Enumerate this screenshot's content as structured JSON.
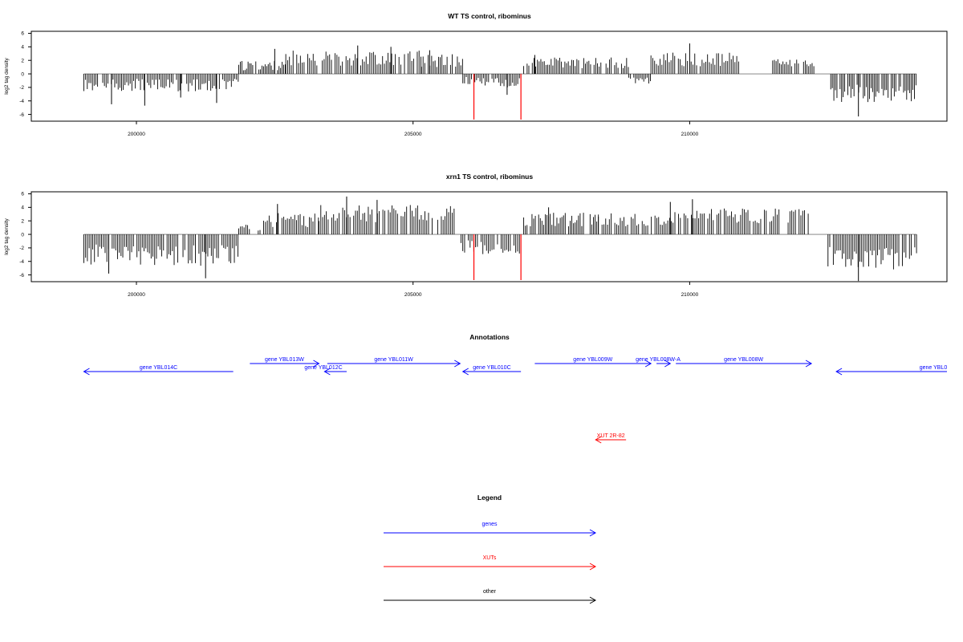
{
  "colors": {
    "gene": "#0000ff",
    "xut": "#ff0000",
    "other": "#000000",
    "bar": "#000000",
    "highlight": "#ff0000"
  },
  "chart_data": [
    {
      "type": "bar",
      "title": "WT TS control, ribominus",
      "ylabel": "log2 tag density",
      "xlim": [
        198100,
        214650
      ],
      "ylim": [
        -7,
        6.3
      ],
      "xticks": [
        200000,
        205000,
        210000
      ],
      "xtick_labels": [
        "200000",
        "205000",
        "210000"
      ],
      "yticks": [
        -6,
        -4,
        -2,
        0,
        2,
        4,
        6
      ],
      "ytick_labels": [
        "-6",
        "-4",
        "-2",
        "0",
        "2",
        "4",
        "6"
      ],
      "highlight_bars": [
        {
          "x": 206100,
          "value": -7
        },
        {
          "x": 206950,
          "value": -7
        }
      ],
      "segments": [
        {
          "start": 199050,
          "end": 201850,
          "sign": -1,
          "mean": 1.4,
          "amp": 1.3,
          "spikes": [
            [
              199550,
              -4.5
            ],
            [
              200150,
              -4.7
            ],
            [
              200800,
              -3.5
            ],
            [
              201450,
              -4.3
            ]
          ]
        },
        {
          "start": 201850,
          "end": 202700,
          "sign": 1,
          "mean": 1.0,
          "amp": 0.9,
          "spikes": [
            [
              202500,
              3.7
            ]
          ]
        },
        {
          "start": 202700,
          "end": 205150,
          "sign": 1,
          "mean": 2.0,
          "amp": 1.4,
          "spikes": [
            [
              204000,
              4.2
            ],
            [
              204600,
              4.0
            ]
          ]
        },
        {
          "start": 205150,
          "end": 205900,
          "sign": 1,
          "mean": 1.6,
          "amp": 1.3,
          "spikes": [
            [
              205300,
              3.5
            ]
          ]
        },
        {
          "start": 205900,
          "end": 206950,
          "sign": -1,
          "mean": 1.0,
          "amp": 1.0,
          "spikes": [
            [
              206700,
              -3.1
            ]
          ]
        },
        {
          "start": 207000,
          "end": 208900,
          "sign": 1,
          "mean": 1.4,
          "amp": 1.0,
          "spikes": [
            [
              207200,
              2.8
            ]
          ]
        },
        {
          "start": 208900,
          "end": 209300,
          "sign": -1,
          "mean": 0.8,
          "amp": 0.6,
          "spikes": []
        },
        {
          "start": 209300,
          "end": 210900,
          "sign": 1,
          "mean": 1.8,
          "amp": 1.3,
          "spikes": [
            [
              210000,
              4.5
            ]
          ]
        },
        {
          "start": 211500,
          "end": 212250,
          "sign": 1,
          "mean": 1.5,
          "amp": 0.7,
          "spikes": []
        },
        {
          "start": 212550,
          "end": 214100,
          "sign": -1,
          "mean": 2.5,
          "amp": 1.6,
          "spikes": [
            [
              213050,
              -6.3
            ]
          ]
        }
      ]
    },
    {
      "type": "bar",
      "title": "xrn1 TS control, ribominus",
      "ylabel": "log2 tag density",
      "xlim": [
        198100,
        214650
      ],
      "ylim": [
        -7,
        6.3
      ],
      "xticks": [
        200000,
        205000,
        210000
      ],
      "xtick_labels": [
        "200000",
        "205000",
        "210000"
      ],
      "yticks": [
        -6,
        -4,
        -2,
        0,
        2,
        4,
        6
      ],
      "ytick_labels": [
        "-6",
        "-4",
        "-2",
        "0",
        "2",
        "4",
        "6"
      ],
      "highlight_bars": [
        {
          "x": 206100,
          "value": -7
        },
        {
          "x": 206950,
          "value": -7
        }
      ],
      "segments": [
        {
          "start": 199050,
          "end": 201850,
          "sign": -1,
          "mean": 2.6,
          "amp": 2.0,
          "spikes": [
            [
              201250,
              -6.5
            ],
            [
              199500,
              -5.8
            ]
          ]
        },
        {
          "start": 201850,
          "end": 202300,
          "sign": 1,
          "mean": 0.8,
          "amp": 0.7,
          "spikes": []
        },
        {
          "start": 202300,
          "end": 203300,
          "sign": 1,
          "mean": 1.8,
          "amp": 1.3,
          "spikes": [
            [
              202550,
              4.5
            ]
          ]
        },
        {
          "start": 203300,
          "end": 205800,
          "sign": 1,
          "mean": 2.7,
          "amp": 1.6,
          "spikes": [
            [
              203800,
              5.6
            ],
            [
              204350,
              5.1
            ]
          ]
        },
        {
          "start": 205800,
          "end": 206950,
          "sign": -1,
          "mean": 1.6,
          "amp": 1.3,
          "spikes": []
        },
        {
          "start": 207000,
          "end": 208350,
          "sign": 1,
          "mean": 1.9,
          "amp": 1.3,
          "spikes": [
            [
              207450,
              4.0
            ]
          ]
        },
        {
          "start": 208350,
          "end": 209700,
          "sign": 1,
          "mean": 1.9,
          "amp": 1.2,
          "spikes": []
        },
        {
          "start": 209700,
          "end": 212200,
          "sign": 1,
          "mean": 2.4,
          "amp": 1.4,
          "spikes": [
            [
              210050,
              5.2
            ],
            [
              209650,
              4.8
            ]
          ]
        },
        {
          "start": 212500,
          "end": 214100,
          "sign": -1,
          "mean": 3.0,
          "amp": 2.1,
          "spikes": [
            [
              213050,
              -6.9
            ]
          ]
        }
      ]
    },
    {
      "type": "annotation-track",
      "title": "Annotations",
      "features": [
        {
          "label": "gene YBL014C",
          "start": 199050,
          "end": 201750,
          "strand": "-",
          "category": "gene"
        },
        {
          "label": "gene YBL013W",
          "start": 202050,
          "end": 203300,
          "strand": "+",
          "category": "gene"
        },
        {
          "label": "gene YBL012C",
          "start": 203400,
          "end": 203800,
          "strand": "-",
          "category": "gene"
        },
        {
          "label": "gene YBL011W",
          "start": 203450,
          "end": 205850,
          "strand": "+",
          "category": "gene"
        },
        {
          "label": "gene YBL010C",
          "start": 205900,
          "end": 206950,
          "strand": "-",
          "category": "gene"
        },
        {
          "label": "gene YBL009W",
          "start": 207200,
          "end": 209300,
          "strand": "+",
          "category": "gene"
        },
        {
          "label": "gene YBL008W-A",
          "start": 209400,
          "end": 209650,
          "strand": "+",
          "category": "gene"
        },
        {
          "label": "gene YBL008W",
          "start": 209750,
          "end": 212200,
          "strand": "+",
          "category": "gene"
        },
        {
          "label": "gene YBL0",
          "start": 212650,
          "end": 214650,
          "strand": "-",
          "category": "gene"
        },
        {
          "label": "XUT 2R-82",
          "start": 208300,
          "end": 208850,
          "strand": "-",
          "category": "xut"
        }
      ]
    },
    {
      "type": "legend",
      "title": "Legend",
      "entries": [
        {
          "label": "genes",
          "category": "gene"
        },
        {
          "label": "XUTs",
          "category": "xut"
        },
        {
          "label": "other",
          "category": "other"
        }
      ]
    }
  ]
}
